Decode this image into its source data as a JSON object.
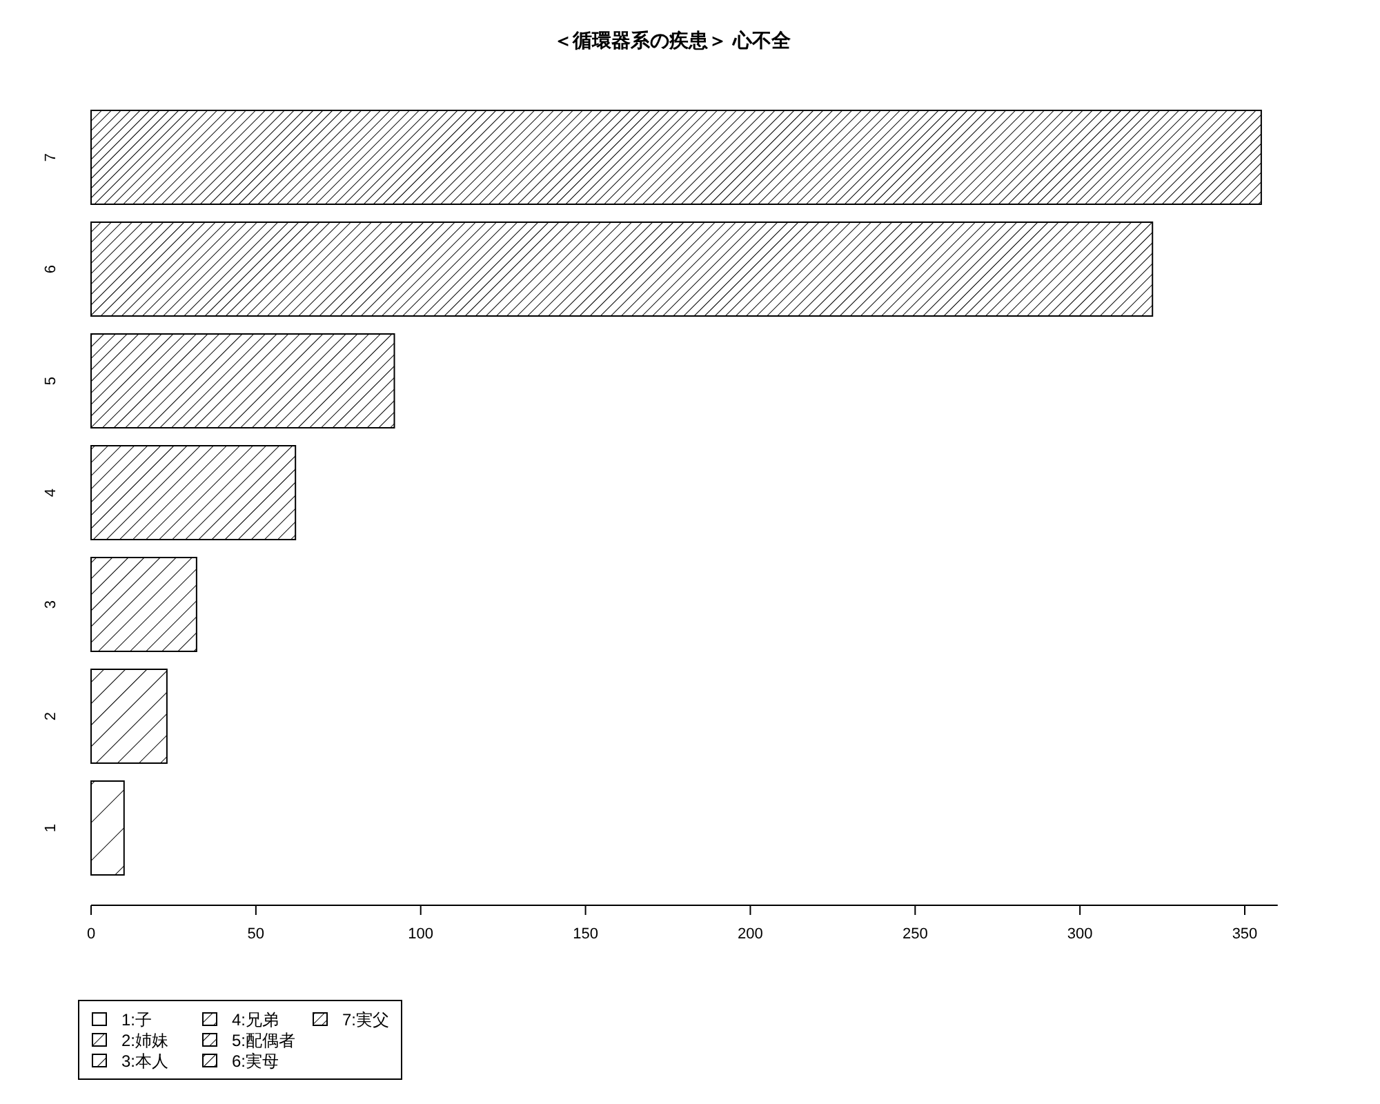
{
  "chart_data": {
    "type": "bar",
    "orientation": "horizontal",
    "title": "＜循環器系の疾患＞ 心不全",
    "categories": [
      "7",
      "6",
      "5",
      "4",
      "3",
      "2",
      "1"
    ],
    "series": [
      {
        "name": "1:子",
        "color": "#000000",
        "values": [
          null,
          null,
          null,
          null,
          null,
          null,
          10
        ]
      },
      {
        "name": "2:姉妹",
        "color": "#000000",
        "values": [
          null,
          null,
          null,
          null,
          null,
          23,
          null
        ]
      },
      {
        "name": "3:本人",
        "color": "#000000",
        "values": [
          null,
          null,
          null,
          null,
          32,
          null,
          null
        ]
      },
      {
        "name": "4:兄弟",
        "color": "#000000",
        "values": [
          null,
          null,
          null,
          62,
          null,
          null,
          null
        ]
      },
      {
        "name": "5:配偶者",
        "color": "#000000",
        "values": [
          null,
          null,
          92,
          null,
          null,
          null,
          null
        ]
      },
      {
        "name": "6:実母",
        "color": "#000000",
        "values": [
          null,
          322,
          null,
          null,
          null,
          null,
          null
        ]
      },
      {
        "name": "7:実父",
        "color": "#000000",
        "values": [
          355,
          null,
          null,
          null,
          null,
          null,
          null
        ]
      }
    ],
    "xlim": [
      0,
      360
    ],
    "xticks": [
      0,
      50,
      100,
      150,
      200,
      250,
      300,
      350
    ],
    "legend": "bottom left"
  }
}
